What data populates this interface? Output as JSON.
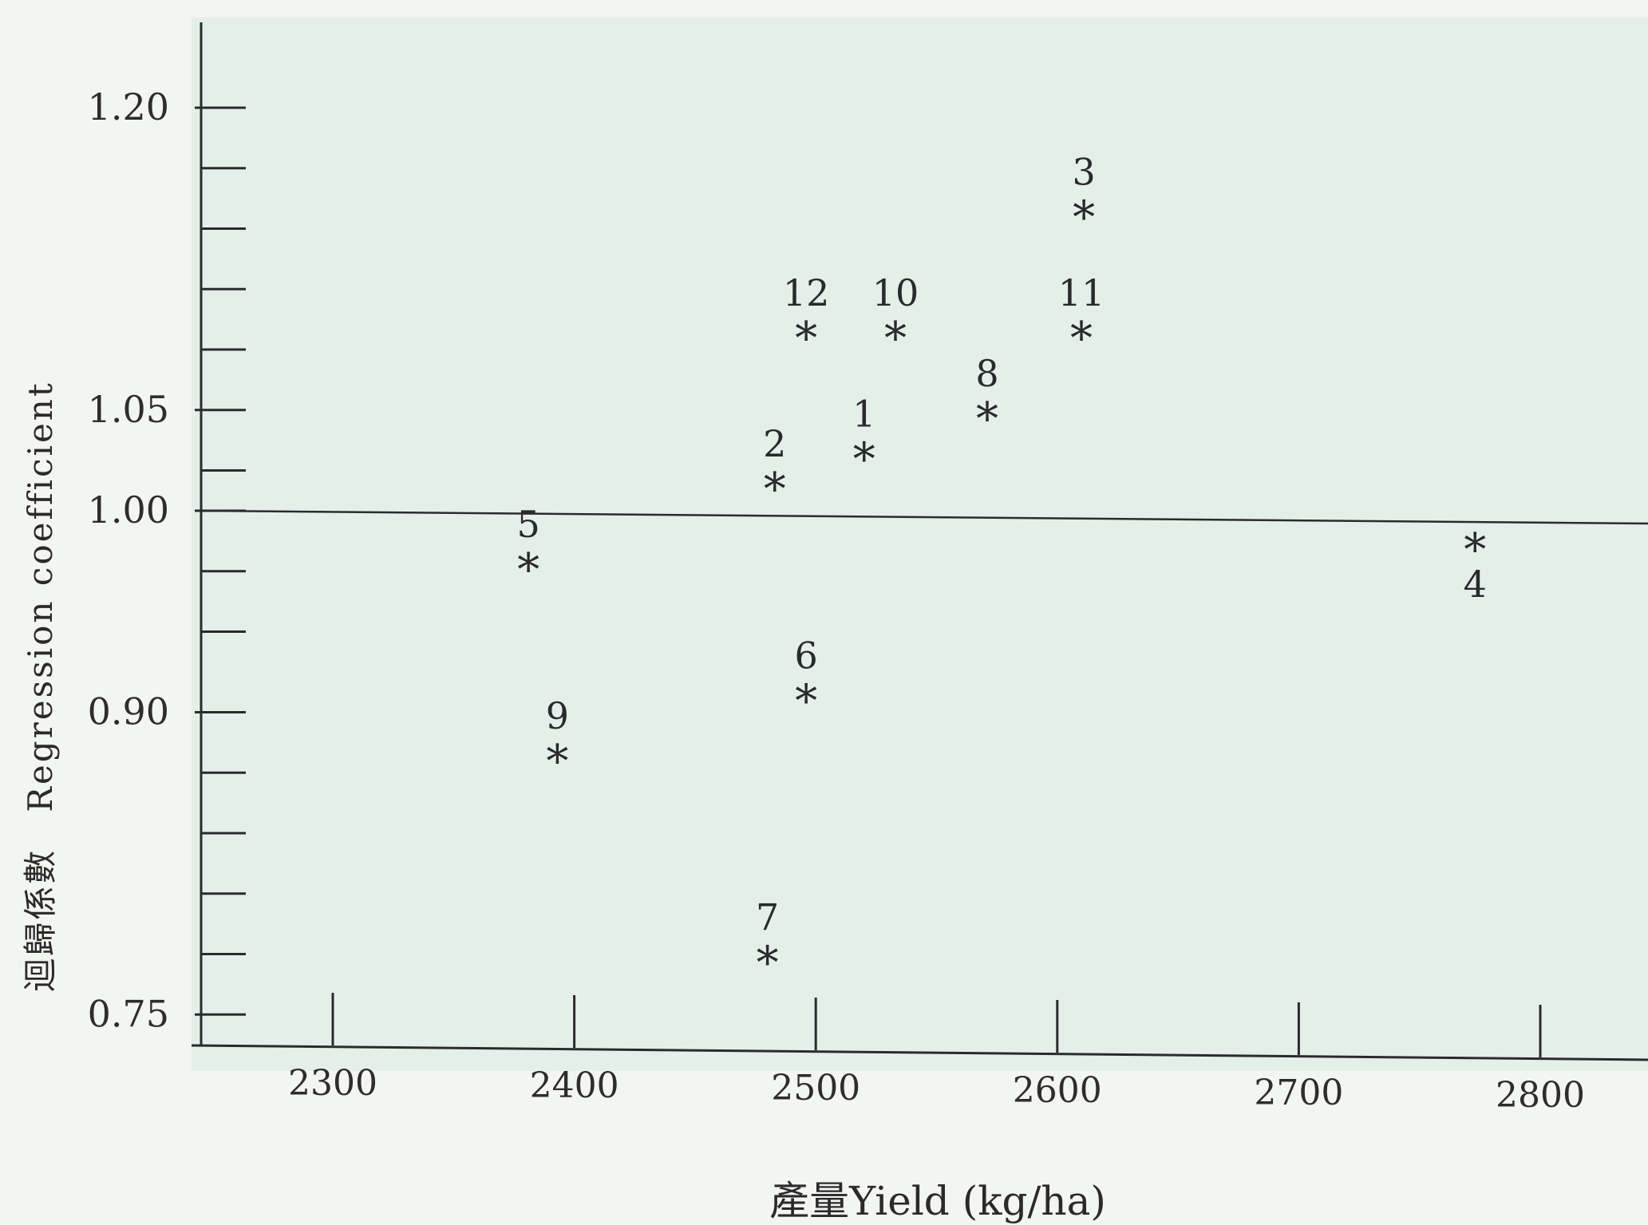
{
  "chart_data": {
    "type": "scatter",
    "xlabel": "產量Yield (kg/ha)",
    "ylabel": "迴歸係數　Regression coefficient",
    "xlim": [
      2240,
      2820
    ],
    "ylim": [
      0.75,
      1.25
    ],
    "x_ticks": [
      2300,
      2400,
      2500,
      2600,
      2700,
      2800
    ],
    "y_tick_labels": [
      {
        "value": 1.2,
        "label": "1.20"
      },
      {
        "value": 1.05,
        "label": "1.05"
      },
      {
        "value": 1.0,
        "label": "1.00"
      },
      {
        "value": 0.9,
        "label": "0.90"
      },
      {
        "value": 0.75,
        "label": "0.75"
      }
    ],
    "y_minor_ticks": [
      1.17,
      1.14,
      1.11,
      1.08,
      1.02,
      0.97,
      0.94,
      0.87,
      0.84,
      0.81,
      0.78
    ],
    "reference_line": 1.0,
    "grid": false,
    "marker": "*",
    "points": [
      {
        "label": "1",
        "x": 2520,
        "y": 1.03
      },
      {
        "label": "2",
        "x": 2483,
        "y": 1.015
      },
      {
        "label": "3",
        "x": 2611,
        "y": 1.15
      },
      {
        "label": "4",
        "x": 2773,
        "y": 0.985
      },
      {
        "label": "5",
        "x": 2381,
        "y": 0.975
      },
      {
        "label": "6",
        "x": 2496,
        "y": 0.91
      },
      {
        "label": "7",
        "x": 2480,
        "y": 0.78
      },
      {
        "label": "8",
        "x": 2571,
        "y": 1.05
      },
      {
        "label": "9",
        "x": 2393,
        "y": 0.88
      },
      {
        "label": "10",
        "x": 2533,
        "y": 1.09
      },
      {
        "label": "11",
        "x": 2610,
        "y": 1.09
      },
      {
        "label": "12",
        "x": 2496,
        "y": 1.09
      }
    ],
    "label_below": [
      "4"
    ]
  }
}
